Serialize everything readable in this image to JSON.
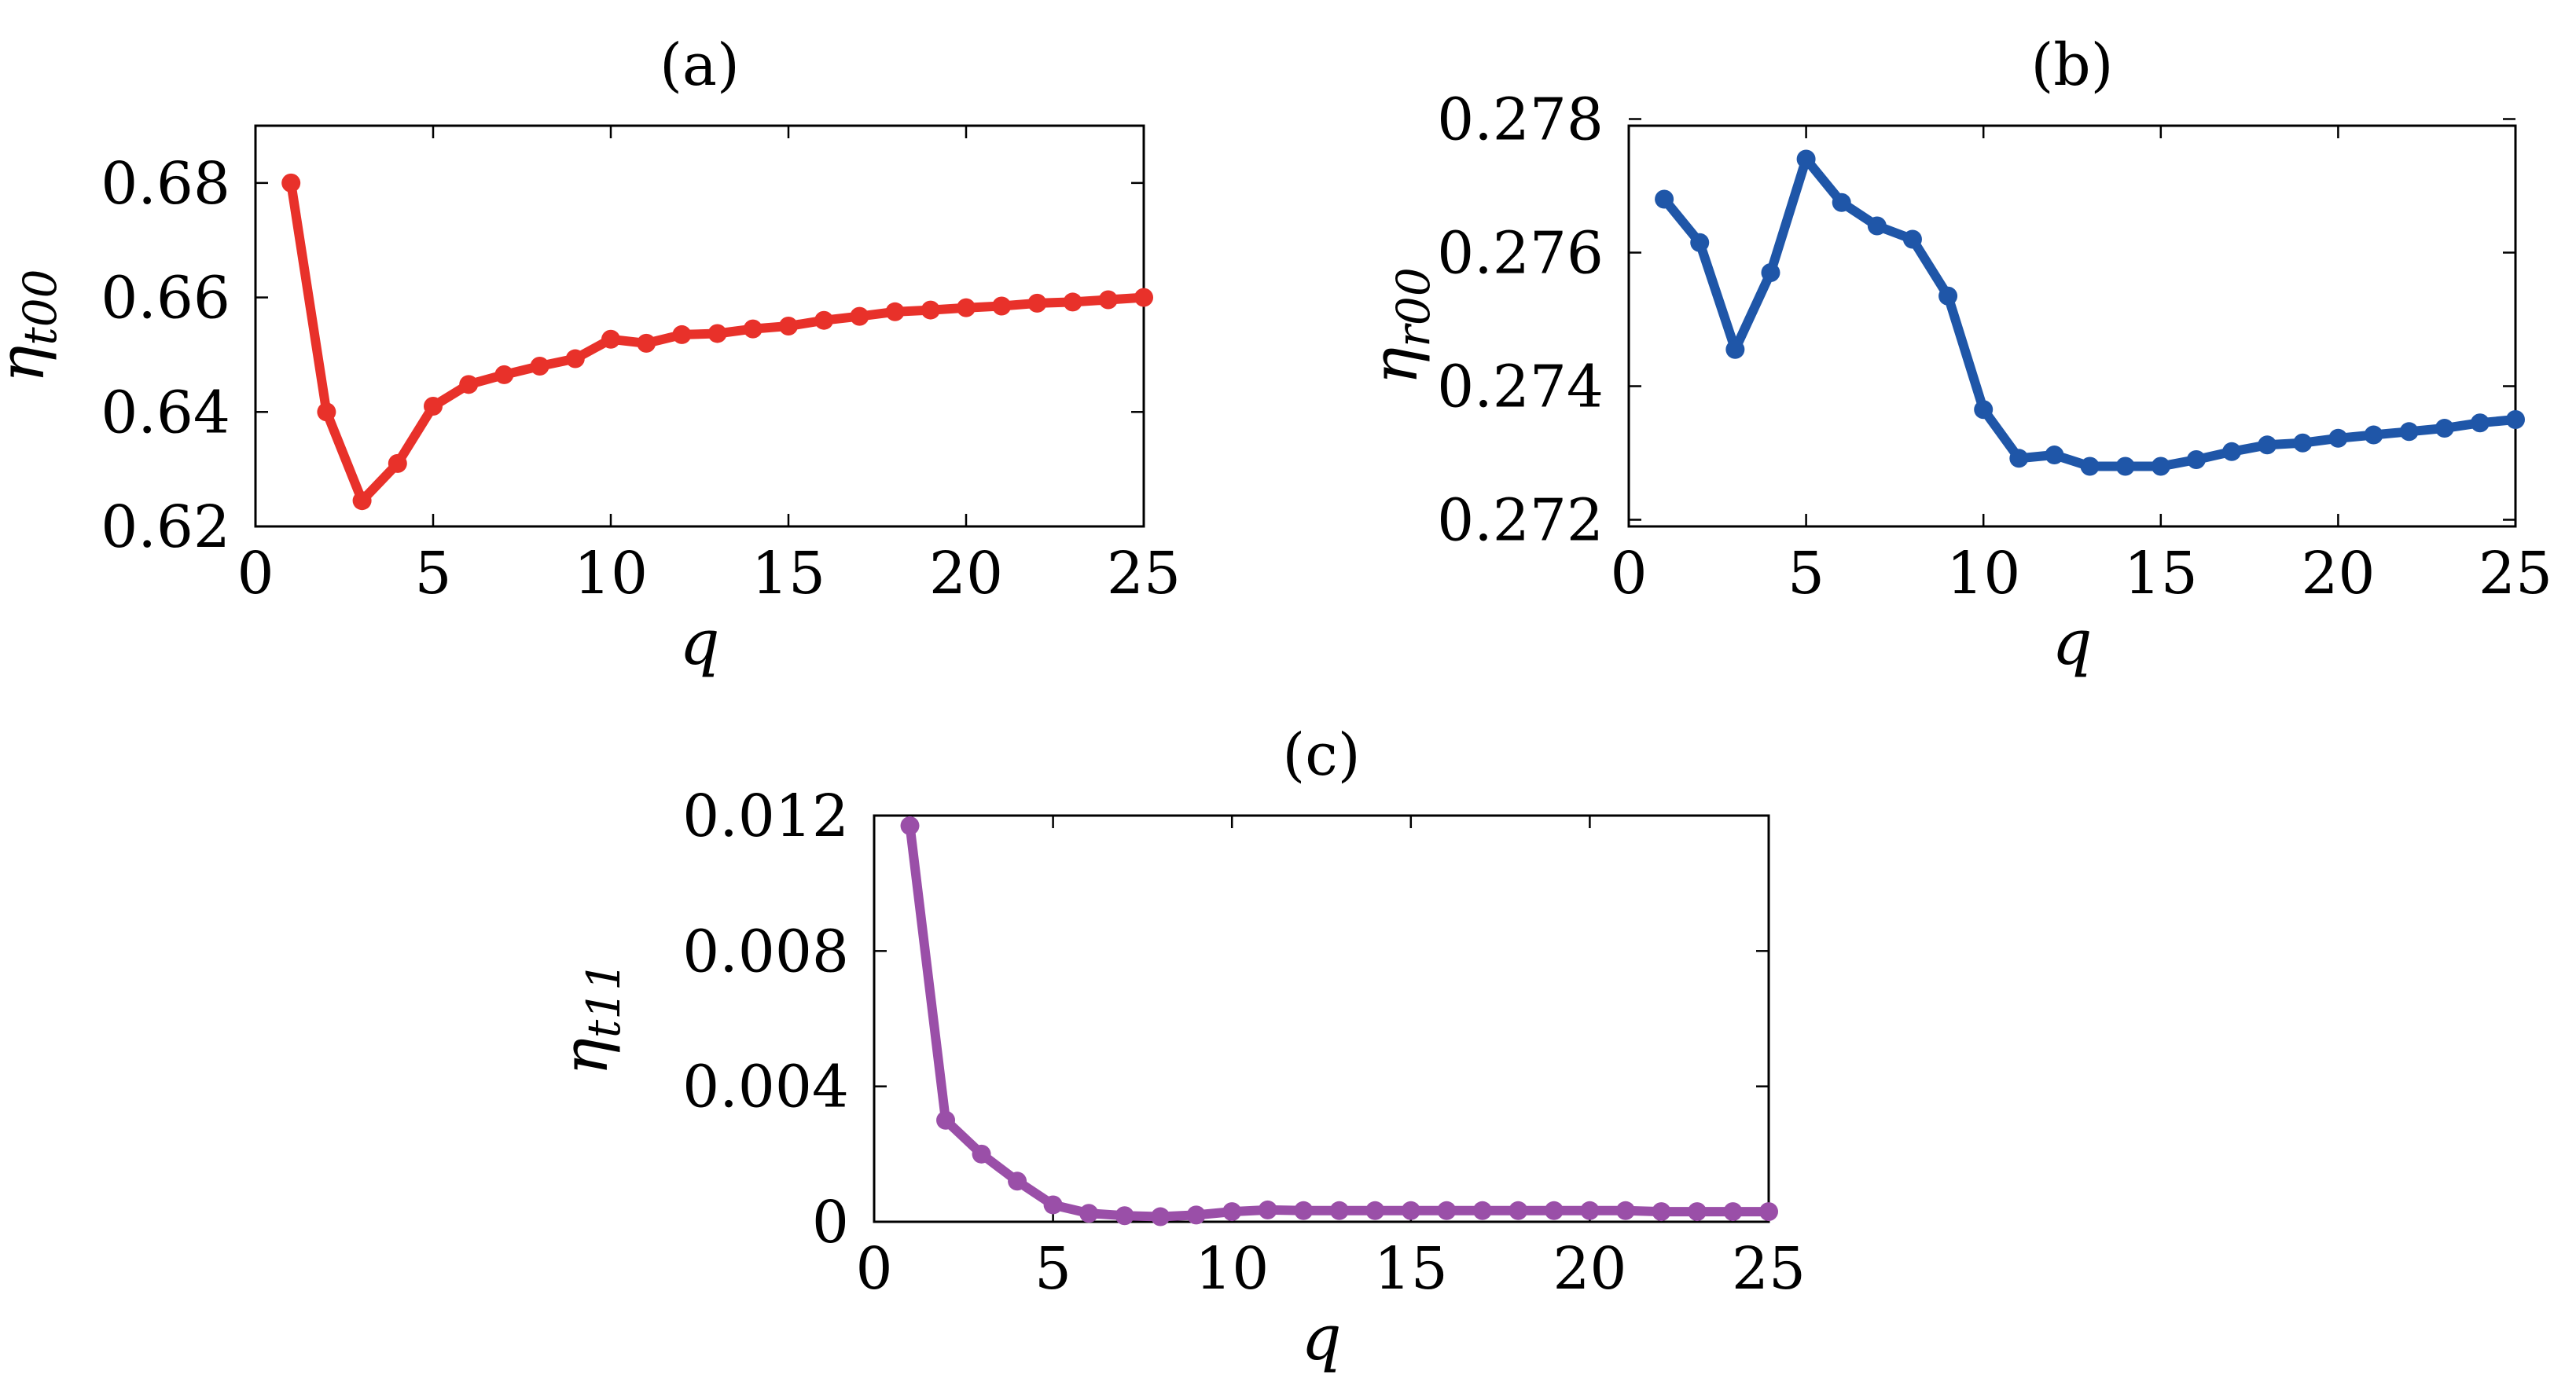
{
  "chart_data": [
    {
      "type": "line",
      "title": "(a)",
      "xlabel": "q",
      "ylabel": {
        "symbol": "η",
        "subscript": "t00"
      },
      "xlim": [
        0,
        25
      ],
      "ylim": [
        0.62,
        0.69
      ],
      "xticks": [
        0,
        5,
        10,
        15,
        20,
        25
      ],
      "xtick_labels": [
        "0",
        "5",
        "10",
        "15",
        "20",
        "25"
      ],
      "yticks": [
        0.62,
        0.64,
        0.66,
        0.68
      ],
      "ytick_labels": [
        "0.62",
        "0.64",
        "0.66",
        "0.68"
      ],
      "grid": false,
      "series": [
        {
          "name": "eta_t00",
          "color": "#e8312a",
          "x": [
            1,
            2,
            3,
            4,
            5,
            6,
            7,
            8,
            9,
            10,
            11,
            12,
            13,
            14,
            15,
            16,
            17,
            18,
            19,
            20,
            21,
            22,
            23,
            24,
            25
          ],
          "y": [
            0.68,
            0.64,
            0.6245,
            0.631,
            0.641,
            0.6448,
            0.6465,
            0.648,
            0.6493,
            0.6527,
            0.652,
            0.6535,
            0.6537,
            0.6545,
            0.655,
            0.656,
            0.6567,
            0.6575,
            0.6578,
            0.6582,
            0.6585,
            0.659,
            0.6592,
            0.6596,
            0.66
          ]
        }
      ]
    },
    {
      "type": "line",
      "title": "(b)",
      "xlabel": "q",
      "ylabel": {
        "symbol": "η",
        "subscript": "r00"
      },
      "xlim": [
        0,
        25
      ],
      "ylim": [
        0.2719,
        0.2779
      ],
      "xticks": [
        0,
        5,
        10,
        15,
        20,
        25
      ],
      "xtick_labels": [
        "0",
        "5",
        "10",
        "15",
        "20",
        "25"
      ],
      "yticks": [
        0.272,
        0.274,
        0.276,
        0.278
      ],
      "ytick_labels": [
        "0.272",
        "0.274",
        "0.276",
        "0.278"
      ],
      "grid": false,
      "series": [
        {
          "name": "eta_r00",
          "color": "#1f56a8",
          "x": [
            1,
            2,
            3,
            4,
            5,
            6,
            7,
            8,
            9,
            10,
            11,
            12,
            13,
            14,
            15,
            16,
            17,
            18,
            19,
            20,
            21,
            22,
            23,
            24,
            25
          ],
          "y": [
            0.2768,
            0.27615,
            0.27455,
            0.2757,
            0.2774,
            0.27675,
            0.2764,
            0.2762,
            0.27535,
            0.27365,
            0.27292,
            0.27297,
            0.2728,
            0.2728,
            0.2728,
            0.2729,
            0.27302,
            0.27312,
            0.27315,
            0.27322,
            0.27327,
            0.27332,
            0.27337,
            0.27345,
            0.2735
          ]
        }
      ]
    },
    {
      "type": "line",
      "title": "(c)",
      "xlabel": "q",
      "ylabel": {
        "symbol": "η",
        "subscript": "t11"
      },
      "xlim": [
        0,
        25
      ],
      "ylim": [
        0,
        0.012
      ],
      "xticks": [
        0,
        5,
        10,
        15,
        20,
        25
      ],
      "xtick_labels": [
        "0",
        "5",
        "10",
        "15",
        "20",
        "25"
      ],
      "yticks": [
        0,
        0.004,
        0.008,
        0.012
      ],
      "ytick_labels": [
        "0",
        "0.004",
        "0.008",
        "0.012"
      ],
      "grid": false,
      "series": [
        {
          "name": "eta_t11",
          "color": "#9a4fa8",
          "x": [
            1,
            2,
            3,
            4,
            5,
            6,
            7,
            8,
            9,
            10,
            11,
            12,
            13,
            14,
            15,
            16,
            17,
            18,
            19,
            20,
            21,
            22,
            23,
            24,
            25
          ],
          "y": [
            0.0117,
            0.003,
            0.002,
            0.0012,
            0.0005,
            0.00025,
            0.00018,
            0.00015,
            0.0002,
            0.0003,
            0.00035,
            0.00033,
            0.00033,
            0.00033,
            0.00033,
            0.00033,
            0.00033,
            0.00033,
            0.00033,
            0.00033,
            0.00033,
            0.0003,
            0.0003,
            0.0003,
            0.0003
          ]
        }
      ]
    }
  ]
}
